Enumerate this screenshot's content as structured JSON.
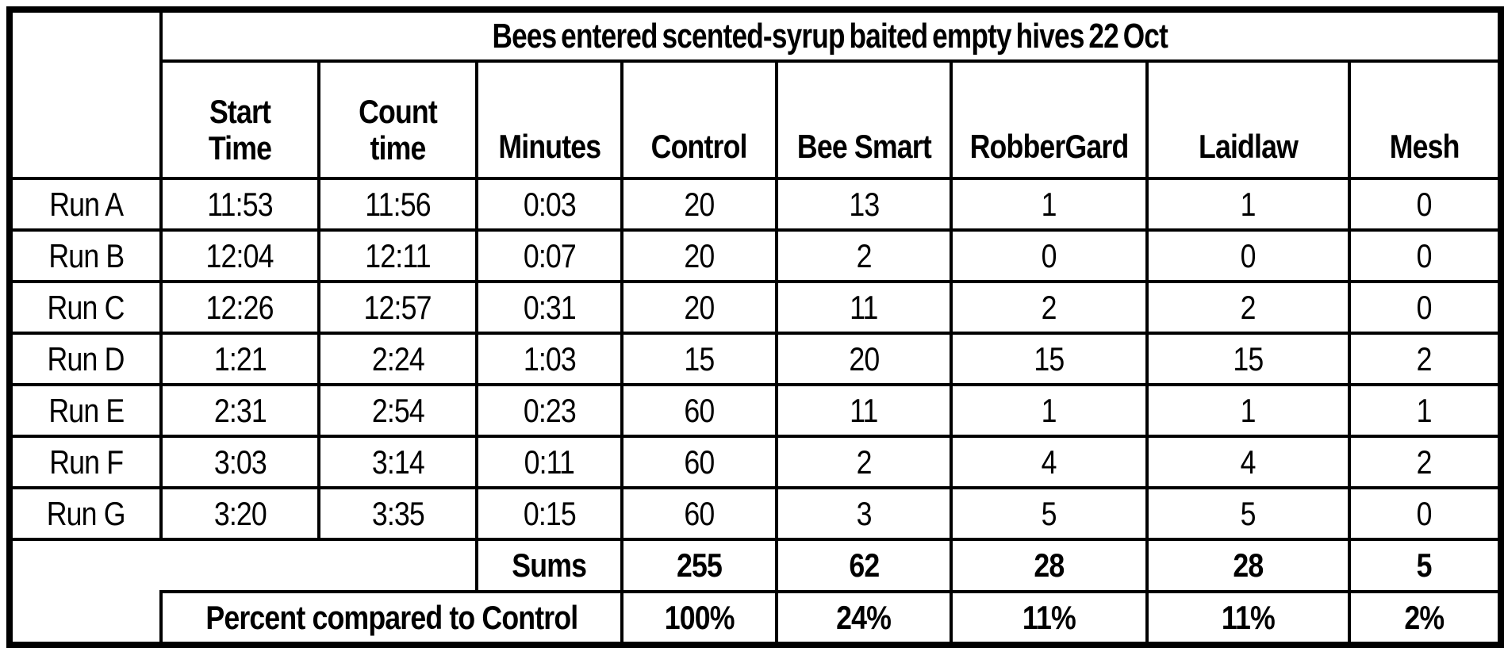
{
  "colors": {
    "border": "#000000",
    "background": "#ffffff",
    "text": "#000000"
  },
  "table": {
    "title": "Bees entered scented-syrup baited empty hives 22 Oct",
    "header": {
      "start_time": {
        "line1": "Start",
        "line2": "Time"
      },
      "count_time": {
        "line1": "Count",
        "line2": "time"
      },
      "minutes": "Minutes",
      "control": "Control",
      "bee_smart": "Bee Smart",
      "robber_gard": "RobberGard",
      "laidlaw": "Laidlaw",
      "mesh": "Mesh"
    },
    "rows": [
      {
        "run": "Run A",
        "start_time": "11:53",
        "count_time": "11:56",
        "minutes": "0:03",
        "control": "20",
        "bee_smart": "13",
        "robber_gard": "1",
        "laidlaw": "1",
        "mesh": "0"
      },
      {
        "run": "Run B",
        "start_time": "12:04",
        "count_time": "12:11",
        "minutes": "0:07",
        "control": "20",
        "bee_smart": "2",
        "robber_gard": "0",
        "laidlaw": "0",
        "mesh": "0"
      },
      {
        "run": "Run C",
        "start_time": "12:26",
        "count_time": "12:57",
        "minutes": "0:31",
        "control": "20",
        "bee_smart": "11",
        "robber_gard": "2",
        "laidlaw": "2",
        "mesh": "0"
      },
      {
        "run": "Run D",
        "start_time": "1:21",
        "count_time": "2:24",
        "minutes": "1:03",
        "control": "15",
        "bee_smart": "20",
        "robber_gard": "15",
        "laidlaw": "15",
        "mesh": "2"
      },
      {
        "run": "Run E",
        "start_time": "2:31",
        "count_time": "2:54",
        "minutes": "0:23",
        "control": "60",
        "bee_smart": "11",
        "robber_gard": "1",
        "laidlaw": "1",
        "mesh": "1"
      },
      {
        "run": "Run F",
        "start_time": "3:03",
        "count_time": "3:14",
        "minutes": "0:11",
        "control": "60",
        "bee_smart": "2",
        "robber_gard": "4",
        "laidlaw": "4",
        "mesh": "2"
      },
      {
        "run": "Run G",
        "start_time": "3:20",
        "count_time": "3:35",
        "minutes": "0:15",
        "control": "60",
        "bee_smart": "3",
        "robber_gard": "5",
        "laidlaw": "5",
        "mesh": "0"
      }
    ],
    "sums_row": {
      "label": "Sums",
      "control": "255",
      "bee_smart": "62",
      "robber_gard": "28",
      "laidlaw": "28",
      "mesh": "5"
    },
    "percent_row": {
      "label": "Percent compared to Control",
      "control": "100%",
      "bee_smart": "24%",
      "robber_gard": "11%",
      "laidlaw": "11%",
      "mesh": "2%"
    }
  },
  "chart_data": {
    "type": "table",
    "title": "Bees entered scented-syrup baited empty hives 22 Oct",
    "columns": [
      "",
      "Start Time",
      "Count time",
      "Minutes",
      "Control",
      "Bee Smart",
      "RobberGard",
      "Laidlaw",
      "Mesh"
    ],
    "rows": [
      [
        "Run A",
        "11:53",
        "11:56",
        "0:03",
        20,
        13,
        1,
        1,
        0
      ],
      [
        "Run B",
        "12:04",
        "12:11",
        "0:07",
        20,
        2,
        0,
        0,
        0
      ],
      [
        "Run C",
        "12:26",
        "12:57",
        "0:31",
        20,
        11,
        2,
        2,
        0
      ],
      [
        "Run D",
        "1:21",
        "2:24",
        "1:03",
        15,
        20,
        15,
        15,
        2
      ],
      [
        "Run E",
        "2:31",
        "2:54",
        "0:23",
        60,
        11,
        1,
        1,
        1
      ],
      [
        "Run F",
        "3:03",
        "3:14",
        "0:11",
        60,
        2,
        4,
        4,
        2
      ],
      [
        "Run G",
        "3:20",
        "3:35",
        "0:15",
        60,
        3,
        5,
        5,
        0
      ]
    ],
    "sums": {
      "Control": 255,
      "Bee Smart": 62,
      "RobberGard": 28,
      "Laidlaw": 28,
      "Mesh": 5
    },
    "percent_compared_to_control": {
      "Control": "100%",
      "Bee Smart": "24%",
      "RobberGard": "11%",
      "Laidlaw": "11%",
      "Mesh": "2%"
    }
  }
}
